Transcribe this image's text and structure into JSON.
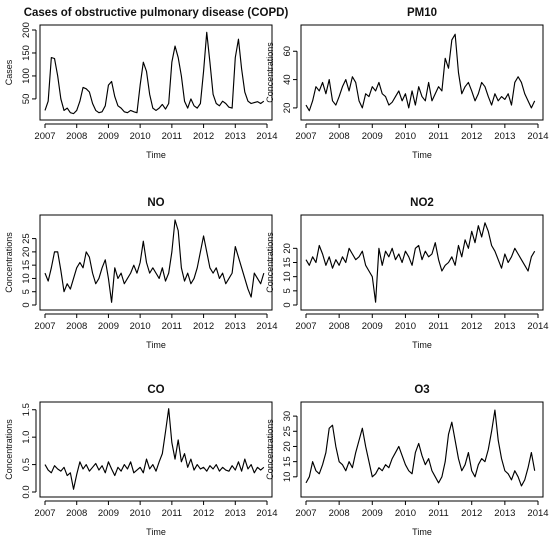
{
  "chart_data": [
    {
      "type": "line",
      "title": "Cases of obstructive pulmonary disease (COPD)",
      "xlabel": "Time",
      "ylabel": "Cases",
      "xlim": [
        2007.0,
        2014.0
      ],
      "ylim": [
        15,
        200
      ],
      "xticks": [
        "2007",
        "2008",
        "2009",
        "2010",
        "2011",
        "2012",
        "2013",
        "2014"
      ],
      "yticks": [
        "50",
        "100",
        "150",
        "200"
      ],
      "grid": false,
      "x": [
        2007.0,
        2007.1,
        2007.2,
        2007.3,
        2007.4,
        2007.5,
        2007.6,
        2007.7,
        2007.8,
        2007.9,
        2008.0,
        2008.1,
        2008.2,
        2008.3,
        2008.4,
        2008.5,
        2008.6,
        2008.7,
        2008.8,
        2008.9,
        2009.0,
        2009.1,
        2009.2,
        2009.3,
        2009.4,
        2009.5,
        2009.6,
        2009.7,
        2009.8,
        2009.9,
        2010.0,
        2010.1,
        2010.2,
        2010.3,
        2010.4,
        2010.5,
        2010.6,
        2010.7,
        2010.8,
        2010.9,
        2011.0,
        2011.1,
        2011.2,
        2011.3,
        2011.4,
        2011.5,
        2011.6,
        2011.7,
        2011.8,
        2011.9,
        2012.0,
        2012.1,
        2012.2,
        2012.3,
        2012.4,
        2012.5,
        2012.6,
        2012.7,
        2012.8,
        2012.9,
        2013.0,
        2013.1,
        2013.2,
        2013.3,
        2013.4,
        2013.5,
        2013.6,
        2013.7,
        2013.8,
        2013.9
      ],
      "values": [
        25,
        45,
        140,
        138,
        100,
        50,
        25,
        30,
        20,
        18,
        25,
        45,
        75,
        72,
        65,
        40,
        25,
        20,
        22,
        35,
        80,
        88,
        55,
        35,
        30,
        22,
        20,
        25,
        22,
        20,
        80,
        130,
        110,
        60,
        30,
        25,
        30,
        38,
        28,
        40,
        130,
        165,
        140,
        100,
        45,
        30,
        50,
        35,
        30,
        40,
        110,
        195,
        130,
        60,
        40,
        35,
        45,
        40,
        32,
        30,
        140,
        180,
        115,
        65,
        45,
        40,
        42,
        44,
        40,
        45
      ]
    },
    {
      "type": "line",
      "title": "PM10",
      "xlabel": "Time",
      "ylabel": "Concentrations",
      "xlim": [
        2007.0,
        2014.0
      ],
      "ylim": [
        15,
        75
      ],
      "xticks": [
        "2007",
        "2008",
        "2009",
        "2010",
        "2011",
        "2012",
        "2013",
        "2014"
      ],
      "yticks": [
        "20",
        "40",
        "60"
      ],
      "grid": false,
      "x": [
        2007.0,
        2007.1,
        2007.2,
        2007.3,
        2007.4,
        2007.5,
        2007.6,
        2007.7,
        2007.8,
        2007.9,
        2008.0,
        2008.1,
        2008.2,
        2008.3,
        2008.4,
        2008.5,
        2008.6,
        2008.7,
        2008.8,
        2008.9,
        2009.0,
        2009.1,
        2009.2,
        2009.3,
        2009.4,
        2009.5,
        2009.6,
        2009.7,
        2009.8,
        2009.9,
        2010.0,
        2010.1,
        2010.2,
        2010.3,
        2010.4,
        2010.5,
        2010.6,
        2010.7,
        2010.8,
        2010.9,
        2011.0,
        2011.1,
        2011.2,
        2011.3,
        2011.4,
        2011.5,
        2011.6,
        2011.7,
        2011.8,
        2011.9,
        2012.0,
        2012.1,
        2012.2,
        2012.3,
        2012.4,
        2012.5,
        2012.6,
        2012.7,
        2012.8,
        2012.9,
        2013.0,
        2013.1,
        2013.2,
        2013.3,
        2013.4,
        2013.5,
        2013.6,
        2013.7,
        2013.8,
        2013.9
      ],
      "values": [
        22,
        18,
        25,
        35,
        32,
        38,
        30,
        40,
        25,
        22,
        28,
        35,
        40,
        32,
        42,
        38,
        25,
        20,
        30,
        28,
        35,
        32,
        38,
        30,
        28,
        22,
        24,
        28,
        32,
        25,
        30,
        20,
        32,
        22,
        35,
        28,
        25,
        38,
        25,
        30,
        35,
        32,
        55,
        48,
        68,
        72,
        45,
        30,
        35,
        38,
        32,
        25,
        30,
        38,
        35,
        28,
        22,
        30,
        25,
        28,
        26,
        30,
        22,
        38,
        42,
        38,
        30,
        25,
        20,
        25
      ]
    },
    {
      "type": "line",
      "title": "NO",
      "xlabel": "Time",
      "ylabel": "Concentrations",
      "xlim": [
        2007.0,
        2014.0
      ],
      "ylim": [
        0,
        32
      ],
      "xticks": [
        "2007",
        "2008",
        "2009",
        "2010",
        "2011",
        "2012",
        "2013",
        "2014"
      ],
      "yticks": [
        "0",
        "5",
        "10",
        "15",
        "20",
        "25"
      ],
      "grid": false,
      "x": [
        2007.0,
        2007.1,
        2007.2,
        2007.3,
        2007.4,
        2007.5,
        2007.6,
        2007.7,
        2007.8,
        2007.9,
        2008.0,
        2008.1,
        2008.2,
        2008.3,
        2008.4,
        2008.5,
        2008.6,
        2008.7,
        2008.8,
        2008.9,
        2009.0,
        2009.1,
        2009.2,
        2009.3,
        2009.4,
        2009.5,
        2009.6,
        2009.7,
        2009.8,
        2009.9,
        2010.0,
        2010.1,
        2010.2,
        2010.3,
        2010.4,
        2010.5,
        2010.6,
        2010.7,
        2010.8,
        2010.9,
        2011.0,
        2011.1,
        2011.2,
        2011.3,
        2011.4,
        2011.5,
        2011.6,
        2011.7,
        2011.8,
        2011.9,
        2012.0,
        2012.1,
        2012.2,
        2012.3,
        2012.4,
        2012.5,
        2012.6,
        2012.7,
        2012.8,
        2012.9,
        2013.0,
        2013.1,
        2013.2,
        2013.3,
        2013.4,
        2013.5,
        2013.6,
        2013.7,
        2013.8,
        2013.9
      ],
      "values": [
        12,
        9,
        14,
        20,
        20,
        13,
        5,
        8,
        6,
        10,
        14,
        16,
        14,
        20,
        18,
        12,
        8,
        10,
        14,
        17,
        10,
        1,
        14,
        10,
        12,
        8,
        10,
        12,
        15,
        12,
        16,
        24,
        16,
        12,
        14,
        12,
        10,
        14,
        9,
        12,
        20,
        32,
        28,
        14,
        9,
        12,
        8,
        10,
        14,
        20,
        26,
        20,
        14,
        12,
        14,
        10,
        12,
        8,
        10,
        12,
        22,
        18,
        14,
        10,
        6,
        3,
        12,
        10,
        8,
        12
      ]
    },
    {
      "type": "line",
      "title": "NO2",
      "xlabel": "Time",
      "ylabel": "Concentrations",
      "xlim": [
        2007.0,
        2014.0
      ],
      "ylim": [
        0,
        30
      ],
      "xticks": [
        "2007",
        "2008",
        "2009",
        "2010",
        "2011",
        "2012",
        "2013",
        "2014"
      ],
      "yticks": [
        "0",
        "5",
        "10",
        "15",
        "20"
      ],
      "grid": false,
      "x": [
        2007.0,
        2007.1,
        2007.2,
        2007.3,
        2007.4,
        2007.5,
        2007.6,
        2007.7,
        2007.8,
        2007.9,
        2008.0,
        2008.1,
        2008.2,
        2008.3,
        2008.4,
        2008.5,
        2008.6,
        2008.7,
        2008.8,
        2008.9,
        2009.0,
        2009.1,
        2009.2,
        2009.3,
        2009.4,
        2009.5,
        2009.6,
        2009.7,
        2009.8,
        2009.9,
        2010.0,
        2010.1,
        2010.2,
        2010.3,
        2010.4,
        2010.5,
        2010.6,
        2010.7,
        2010.8,
        2010.9,
        2011.0,
        2011.1,
        2011.2,
        2011.3,
        2011.4,
        2011.5,
        2011.6,
        2011.7,
        2011.8,
        2011.9,
        2012.0,
        2012.1,
        2012.2,
        2012.3,
        2012.4,
        2012.5,
        2012.6,
        2012.7,
        2012.8,
        2012.9,
        2013.0,
        2013.1,
        2013.2,
        2013.3,
        2013.4,
        2013.5,
        2013.6,
        2013.7,
        2013.8,
        2013.9
      ],
      "values": [
        16,
        14,
        17,
        15,
        21,
        18,
        14,
        17,
        13,
        16,
        14,
        17,
        15,
        20,
        18,
        16,
        17,
        19,
        14,
        12,
        10,
        1,
        20,
        14,
        19,
        17,
        20,
        16,
        18,
        15,
        19,
        17,
        14,
        20,
        21,
        16,
        19,
        17,
        18,
        22,
        16,
        12,
        14,
        15,
        17,
        14,
        21,
        17,
        23,
        20,
        26,
        22,
        28,
        24,
        29,
        26,
        21,
        19,
        16,
        13,
        18,
        15,
        17,
        20,
        18,
        16,
        14,
        12,
        17,
        19
      ]
    },
    {
      "type": "line",
      "title": "CO",
      "xlabel": "Time",
      "ylabel": "Concentrations",
      "xlim": [
        2007.0,
        2014.0
      ],
      "ylim": [
        0,
        1.55
      ],
      "xticks": [
        "2007",
        "2008",
        "2009",
        "2010",
        "2011",
        "2012",
        "2013",
        "2014"
      ],
      "yticks": [
        "0.0",
        "0.5",
        "1.0",
        "1.5"
      ],
      "grid": false,
      "x": [
        2007.0,
        2007.1,
        2007.2,
        2007.3,
        2007.4,
        2007.5,
        2007.6,
        2007.7,
        2007.8,
        2007.9,
        2008.0,
        2008.1,
        2008.2,
        2008.3,
        2008.4,
        2008.5,
        2008.6,
        2008.7,
        2008.8,
        2008.9,
        2009.0,
        2009.1,
        2009.2,
        2009.3,
        2009.4,
        2009.5,
        2009.6,
        2009.7,
        2009.8,
        2009.9,
        2010.0,
        2010.1,
        2010.2,
        2010.3,
        2010.4,
        2010.5,
        2010.6,
        2010.7,
        2010.8,
        2010.9,
        2011.0,
        2011.1,
        2011.2,
        2011.3,
        2011.4,
        2011.5,
        2011.6,
        2011.7,
        2011.8,
        2011.9,
        2012.0,
        2012.1,
        2012.2,
        2012.3,
        2012.4,
        2012.5,
        2012.6,
        2012.7,
        2012.8,
        2012.9,
        2013.0,
        2013.1,
        2013.2,
        2013.3,
        2013.4,
        2013.5,
        2013.6,
        2013.7,
        2013.8,
        2013.9
      ],
      "values": [
        0.5,
        0.4,
        0.35,
        0.48,
        0.42,
        0.38,
        0.45,
        0.3,
        0.35,
        0.05,
        0.32,
        0.55,
        0.42,
        0.5,
        0.38,
        0.45,
        0.52,
        0.4,
        0.48,
        0.35,
        0.55,
        0.42,
        0.3,
        0.45,
        0.38,
        0.5,
        0.42,
        0.55,
        0.35,
        0.4,
        0.45,
        0.35,
        0.6,
        0.42,
        0.5,
        0.38,
        0.55,
        0.7,
        1.1,
        1.52,
        0.9,
        0.6,
        0.95,
        0.55,
        0.7,
        0.45,
        0.6,
        0.4,
        0.5,
        0.42,
        0.45,
        0.38,
        0.48,
        0.42,
        0.5,
        0.38,
        0.45,
        0.4,
        0.38,
        0.48,
        0.4,
        0.55,
        0.38,
        0.6,
        0.42,
        0.5,
        0.35,
        0.45,
        0.4,
        0.45
      ]
    },
    {
      "type": "line",
      "title": "O3",
      "xlabel": "Time",
      "ylabel": "Concentrations",
      "xlim": [
        2007.0,
        2014.0
      ],
      "ylim": [
        5,
        33
      ],
      "xticks": [
        "2007",
        "2008",
        "2009",
        "2010",
        "2011",
        "2012",
        "2013",
        "2014"
      ],
      "yticks": [
        "10",
        "15",
        "20",
        "25",
        "30"
      ],
      "grid": false,
      "x": [
        2007.0,
        2007.1,
        2007.2,
        2007.3,
        2007.4,
        2007.5,
        2007.6,
        2007.7,
        2007.8,
        2007.9,
        2008.0,
        2008.1,
        2008.2,
        2008.3,
        2008.4,
        2008.5,
        2008.6,
        2008.7,
        2008.8,
        2008.9,
        2009.0,
        2009.1,
        2009.2,
        2009.3,
        2009.4,
        2009.5,
        2009.6,
        2009.7,
        2009.8,
        2009.9,
        2010.0,
        2010.1,
        2010.2,
        2010.3,
        2010.4,
        2010.5,
        2010.6,
        2010.7,
        2010.8,
        2010.9,
        2011.0,
        2011.1,
        2011.2,
        2011.3,
        2011.4,
        2011.5,
        2011.6,
        2011.7,
        2011.8,
        2011.9,
        2012.0,
        2012.1,
        2012.2,
        2012.3,
        2012.4,
        2012.5,
        2012.6,
        2012.7,
        2012.8,
        2012.9,
        2013.0,
        2013.1,
        2013.2,
        2013.3,
        2013.4,
        2013.5,
        2013.6,
        2013.7,
        2013.8,
        2013.9
      ],
      "values": [
        8,
        10,
        15,
        12,
        11,
        14,
        18,
        26,
        27,
        20,
        15,
        14,
        12,
        15,
        13,
        18,
        22,
        26,
        20,
        15,
        10,
        11,
        13,
        12,
        14,
        13,
        16,
        18,
        20,
        17,
        14,
        12,
        11,
        18,
        21,
        17,
        14,
        16,
        12,
        10,
        8,
        10,
        15,
        24,
        28,
        22,
        16,
        12,
        14,
        18,
        12,
        10,
        14,
        16,
        15,
        19,
        25,
        32,
        22,
        16,
        12,
        11,
        9,
        12,
        10,
        7,
        9,
        13,
        18,
        12
      ]
    }
  ]
}
